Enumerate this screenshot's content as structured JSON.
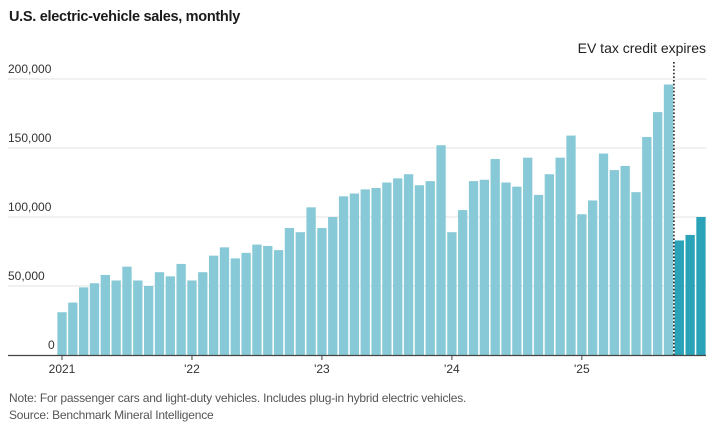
{
  "title": "U.S. electric-vehicle sales, monthly",
  "note": "Note: For passenger cars and light-duty vehicles. Includes plug-in hybrid electric vehicles.",
  "source": "Source: Benchmark Mineral Intelligence",
  "colors": {
    "bar": "#87c9d6",
    "bar_after": "#2aa3b8",
    "grid": "#e3e3e3",
    "axis": "#444444",
    "marker": "#222222"
  },
  "chart_data": {
    "type": "bar",
    "title": "U.S. electric-vehicle sales, monthly",
    "xlabel": "",
    "ylabel": "",
    "ylim": [
      0,
      200000
    ],
    "yticks": [
      0,
      50000,
      100000,
      150000,
      200000
    ],
    "ytick_labels": [
      "0",
      "50,000",
      "100,000",
      "150,000",
      "200,000"
    ],
    "grid": true,
    "xtick_labels": [
      {
        "label": "2021",
        "index": 0
      },
      {
        "label": "'22",
        "index": 12
      },
      {
        "label": "'23",
        "index": 24
      },
      {
        "label": "'24",
        "index": 36
      },
      {
        "label": "'25",
        "index": 48
      }
    ],
    "categories": [
      "2021-01",
      "2021-02",
      "2021-03",
      "2021-04",
      "2021-05",
      "2021-06",
      "2021-07",
      "2021-08",
      "2021-09",
      "2021-10",
      "2021-11",
      "2021-12",
      "2022-01",
      "2022-02",
      "2022-03",
      "2022-04",
      "2022-05",
      "2022-06",
      "2022-07",
      "2022-08",
      "2022-09",
      "2022-10",
      "2022-11",
      "2022-12",
      "2023-01",
      "2023-02",
      "2023-03",
      "2023-04",
      "2023-05",
      "2023-06",
      "2023-07",
      "2023-08",
      "2023-09",
      "2023-10",
      "2023-11",
      "2023-12",
      "2024-01",
      "2024-02",
      "2024-03",
      "2024-04",
      "2024-05",
      "2024-06",
      "2024-07",
      "2024-08",
      "2024-09",
      "2024-10",
      "2024-11",
      "2024-12",
      "2025-01",
      "2025-02",
      "2025-03",
      "2025-04",
      "2025-05",
      "2025-06",
      "2025-07",
      "2025-08",
      "2025-09",
      "2025-10",
      "2025-11",
      "2025-12"
    ],
    "values": [
      31000,
      38000,
      49000,
      52000,
      58000,
      54000,
      64000,
      54000,
      50000,
      60000,
      57000,
      66000,
      54000,
      60000,
      72000,
      78000,
      70000,
      74000,
      80000,
      79000,
      76000,
      92000,
      89000,
      107000,
      92000,
      100000,
      115000,
      117000,
      120000,
      121000,
      125000,
      128000,
      131000,
      123000,
      126000,
      152000,
      89000,
      105000,
      126000,
      127000,
      142000,
      125000,
      122000,
      143000,
      116000,
      131000,
      143000,
      159000,
      102000,
      112000,
      146000,
      134000,
      137000,
      118000,
      158000,
      176000,
      196000,
      83000,
      87000,
      100000
    ],
    "highlight_from_index": 57,
    "annotation": {
      "text": "EV tax credit expires",
      "after_index": 56,
      "style": "dotted vertical line"
    }
  }
}
